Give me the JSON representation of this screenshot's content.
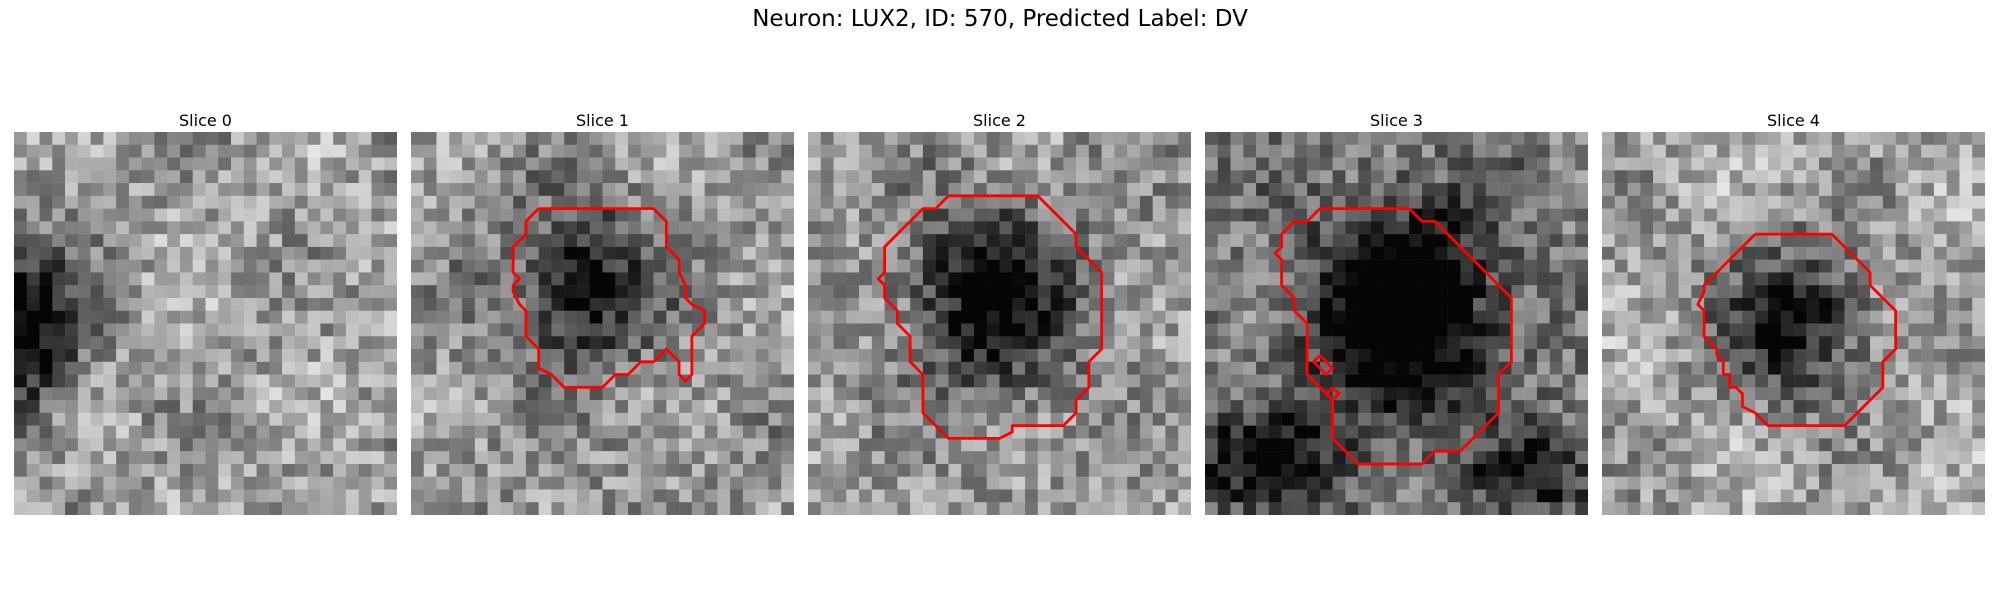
{
  "figure": {
    "title": "Neuron: LUX2, ID: 570, Predicted Label: DV"
  },
  "panels": [
    {
      "title": "Slice 0"
    },
    {
      "title": "Slice 1"
    },
    {
      "title": "Slice 2"
    },
    {
      "title": "Slice 3"
    },
    {
      "title": "Slice 4"
    }
  ],
  "colors": {
    "contour": "#ff0000",
    "background": "#ffffff"
  },
  "colormap": "gray"
}
